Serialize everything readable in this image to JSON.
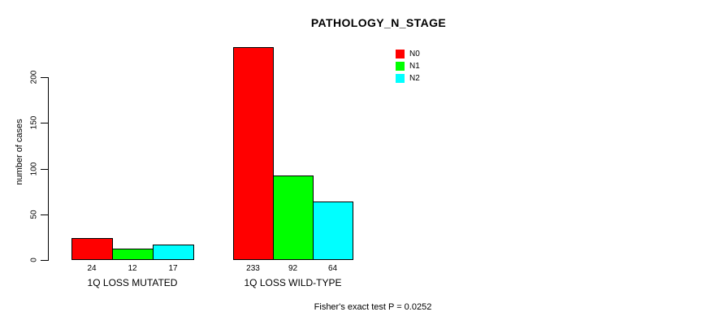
{
  "title": "PATHOLOGY_N_STAGE",
  "footnote": "Fisher's exact test P = 0.0252",
  "y_axis": {
    "label": "number of cases",
    "ticks": [
      "0",
      "50",
      "100",
      "150",
      "200"
    ]
  },
  "legend": {
    "items": [
      {
        "label": "N0",
        "color": "#ff0000"
      },
      {
        "label": "N1",
        "color": "#00ff00"
      },
      {
        "label": "N2",
        "color": "#00ffff"
      }
    ]
  },
  "chart_data": {
    "type": "bar",
    "title": "PATHOLOGY_N_STAGE",
    "xlabel": "",
    "ylabel": "number of cases",
    "categories": [
      "1Q LOSS MUTATED",
      "1Q LOSS WILD-TYPE"
    ],
    "series": [
      {
        "name": "N0",
        "color": "#ff0000",
        "values": [
          24,
          233
        ]
      },
      {
        "name": "N1",
        "color": "#00ff00",
        "values": [
          12,
          92
        ]
      },
      {
        "name": "N2",
        "color": "#00ffff",
        "values": [
          17,
          64
        ]
      }
    ],
    "yticks": [
      0,
      50,
      100,
      150,
      200
    ],
    "ylim": [
      0,
      240
    ],
    "grid": false,
    "legend_position": "top-right",
    "bar_value_labels": true,
    "annotation": "Fisher's exact test P = 0.0252"
  }
}
